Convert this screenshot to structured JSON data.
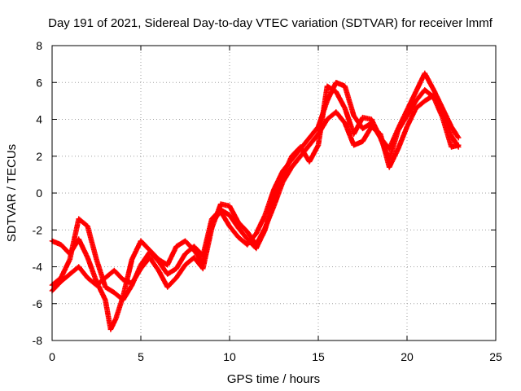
{
  "chart_data": {
    "type": "scatter",
    "title": "Day 191 of 2021, Sidereal Day-to-day VTEC variation (SDTVAR) for receiver lmmf",
    "xlabel": "GPS time / hours",
    "ylabel": "SDTVAR / TECUs",
    "xlim": [
      0,
      25
    ],
    "ylim": [
      -8,
      8
    ],
    "xticks": [
      "0",
      "5",
      "10",
      "15",
      "20",
      "25"
    ],
    "yticks": [
      "-8",
      "-6",
      "-4",
      "-2",
      "0",
      "2",
      "4",
      "6",
      "8"
    ],
    "grid": true,
    "marker": "+",
    "colors": {
      "series": "#ff0000"
    },
    "series": [
      {
        "x": [
          0.0,
          0.5,
          1.0,
          1.5,
          2.0,
          2.5,
          3.0,
          3.3,
          3.6,
          4.0,
          4.5,
          5.0,
          5.5,
          6.0,
          6.5,
          7.0,
          7.5,
          8.0,
          8.5,
          9.0,
          9.5,
          10.0,
          10.5,
          11.0,
          11.5,
          12.0,
          12.5,
          13.0,
          13.5,
          14.0,
          14.5,
          15.0,
          15.5,
          16.0,
          16.5,
          17.0,
          17.5,
          18.0,
          18.5,
          19.0,
          19.5,
          20.0,
          20.5,
          21.0,
          21.5,
          22.0,
          22.5,
          22.9
        ],
        "y": [
          -2.6,
          -2.8,
          -3.3,
          -2.5,
          -3.5,
          -4.8,
          -5.8,
          -7.4,
          -6.8,
          -5.6,
          -3.6,
          -2.6,
          -3.1,
          -3.6,
          -3.9,
          -2.9,
          -2.6,
          -3.1,
          -3.8,
          -1.6,
          -1.0,
          -1.8,
          -2.4,
          -2.8,
          -2.2,
          -1.2,
          0.2,
          1.2,
          1.8,
          2.4,
          3.0,
          3.6,
          5.0,
          6.0,
          5.8,
          4.2,
          3.5,
          3.8,
          3.0,
          2.4,
          3.5,
          4.5,
          5.5,
          6.5,
          5.6,
          4.6,
          3.6,
          3.0
        ]
      },
      {
        "x": [
          0.0,
          0.5,
          1.0,
          1.5,
          2.0,
          2.5,
          3.0,
          3.5,
          4.0,
          4.5,
          5.0,
          5.5,
          6.0,
          6.5,
          7.0,
          7.5,
          8.0,
          8.5,
          9.0,
          9.5,
          10.0,
          10.5,
          11.0,
          11.5,
          12.0,
          12.5,
          13.0,
          13.5,
          14.0,
          14.5,
          15.0,
          15.5,
          16.0,
          16.5,
          17.0,
          17.5,
          18.0,
          18.5,
          19.0,
          19.5,
          20.0,
          20.5,
          21.0,
          21.5,
          22.0,
          22.5,
          22.9
        ],
        "y": [
          -5.3,
          -4.8,
          -4.4,
          -4.0,
          -4.6,
          -5.0,
          -4.6,
          -4.2,
          -4.7,
          -4.9,
          -4.1,
          -3.5,
          -4.2,
          -5.1,
          -4.6,
          -3.9,
          -3.5,
          -4.1,
          -1.9,
          -0.6,
          -0.7,
          -1.6,
          -2.1,
          -2.8,
          -1.9,
          -0.7,
          0.6,
          1.4,
          2.0,
          2.6,
          3.2,
          4.0,
          4.4,
          3.8,
          2.6,
          2.8,
          3.6,
          3.2,
          1.4,
          2.4,
          3.6,
          4.6,
          5.0,
          5.3,
          4.5,
          3.1,
          2.5
        ]
      },
      {
        "x": [
          0.0,
          0.5,
          1.0,
          1.5,
          2.0,
          2.5,
          3.0,
          3.5,
          4.0,
          4.5,
          5.0,
          5.5,
          6.0,
          6.5,
          7.0,
          7.5,
          8.0,
          8.5,
          9.0,
          9.5,
          10.0,
          10.5,
          11.0,
          11.5,
          12.0,
          12.5,
          13.0,
          13.5,
          14.0,
          14.5,
          15.0,
          15.5,
          16.0,
          16.5,
          17.0,
          17.5,
          18.0,
          18.5,
          19.0,
          19.5,
          20.0,
          20.5,
          21.0,
          21.5,
          22.0,
          22.5,
          22.9
        ],
        "y": [
          -5.0,
          -4.6,
          -3.6,
          -1.4,
          -1.8,
          -3.6,
          -5.1,
          -5.4,
          -5.8,
          -5.0,
          -3.9,
          -3.2,
          -3.7,
          -4.4,
          -4.1,
          -3.3,
          -2.9,
          -3.4,
          -1.4,
          -0.9,
          -1.2,
          -1.9,
          -2.5,
          -3.0,
          -2.0,
          -0.3,
          0.9,
          2.0,
          2.5,
          1.7,
          2.6,
          5.8,
          5.5,
          4.6,
          3.2,
          4.1,
          4.0,
          3.0,
          1.8,
          3.4,
          4.2,
          5.0,
          5.6,
          5.2,
          4.1,
          2.5,
          2.6
        ]
      }
    ]
  }
}
